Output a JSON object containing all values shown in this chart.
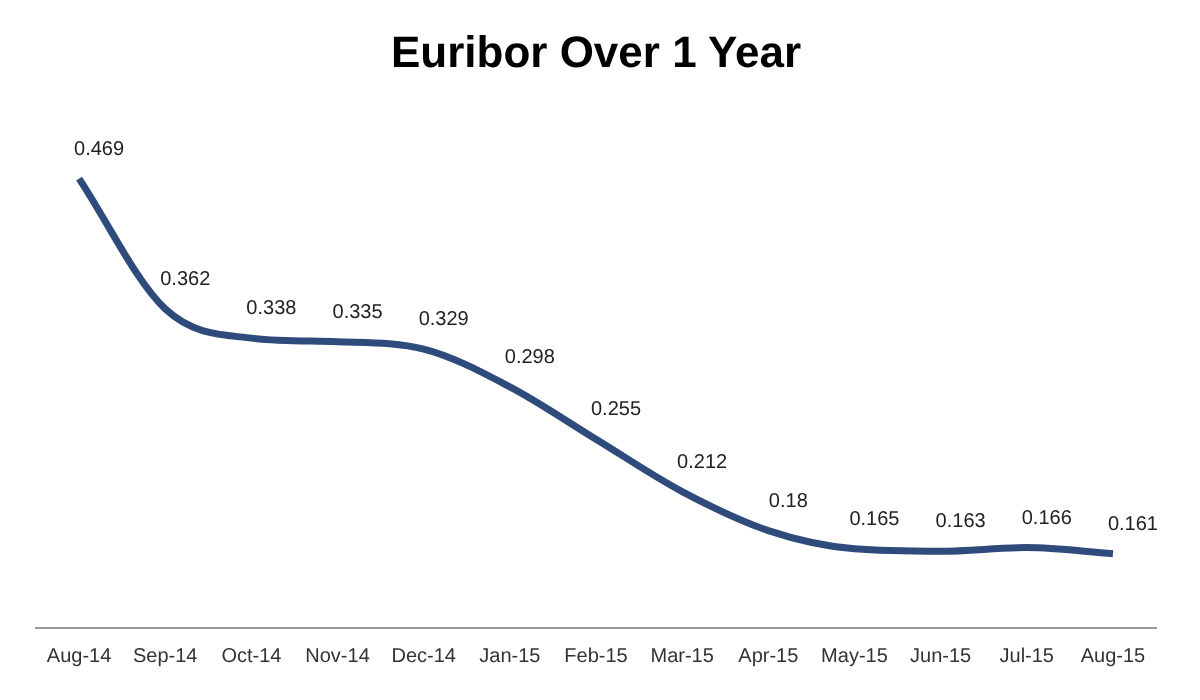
{
  "chart_data": {
    "type": "line",
    "title": "Euribor Over 1 Year",
    "categories": [
      "Aug-14",
      "Sep-14",
      "Oct-14",
      "Nov-14",
      "Dec-14",
      "Jan-15",
      "Feb-15",
      "Mar-15",
      "Apr-15",
      "May-15",
      "Jun-15",
      "Jul-15",
      "Aug-15"
    ],
    "series": [
      {
        "color": "#2f4b7c",
        "values": [
          0.469,
          0.362,
          0.338,
          0.335,
          0.329,
          0.298,
          0.255,
          0.212,
          0.18,
          0.165,
          0.163,
          0.166,
          0.161
        ]
      }
    ],
    "data_labels": true,
    "legend": false,
    "grid": false,
    "marker": "none",
    "line_style": "solid"
  }
}
